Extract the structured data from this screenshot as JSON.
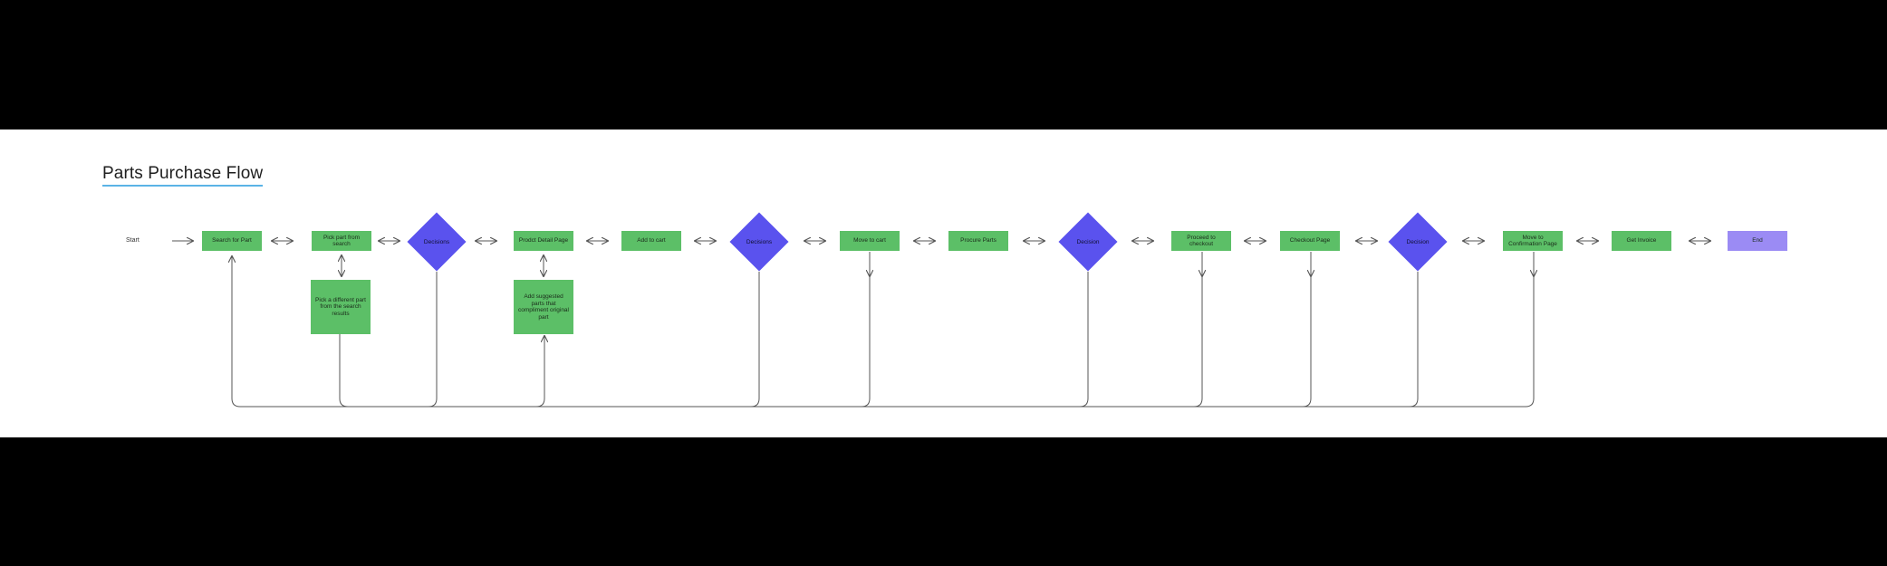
{
  "canvas": {
    "background": "#ffffff",
    "frame": "#000000"
  },
  "title": "Parts Purchase Flow",
  "colors": {
    "process": "#5cbf67",
    "decision": "#5a52ee",
    "end": "#9b8bf4",
    "line": "#555555",
    "title_underline": "#5ab3e6"
  },
  "nodes": {
    "start": "Start",
    "search_for_part": "Search for Part",
    "pick_part": "Pick part from search",
    "decision_1": "Decisions",
    "pick_different": "Pick a different part from the search results",
    "product_detail": "Prodct Detail Page",
    "add_suggested": "Add suggested parts that compliment original part",
    "add_to_cart": "Add to cart",
    "decision_2": "Decisions",
    "move_to_cart": "Move to cart",
    "procure_parts": "Procure Parts",
    "decision_3": "Decision",
    "proceed_checkout": "Proceed to checkout",
    "checkout_page": "Checkout Page",
    "decision_4": "Decision",
    "move_confirmation": "Move to Confirmation Page",
    "get_invoice": "Get Invoice",
    "end": "End"
  }
}
